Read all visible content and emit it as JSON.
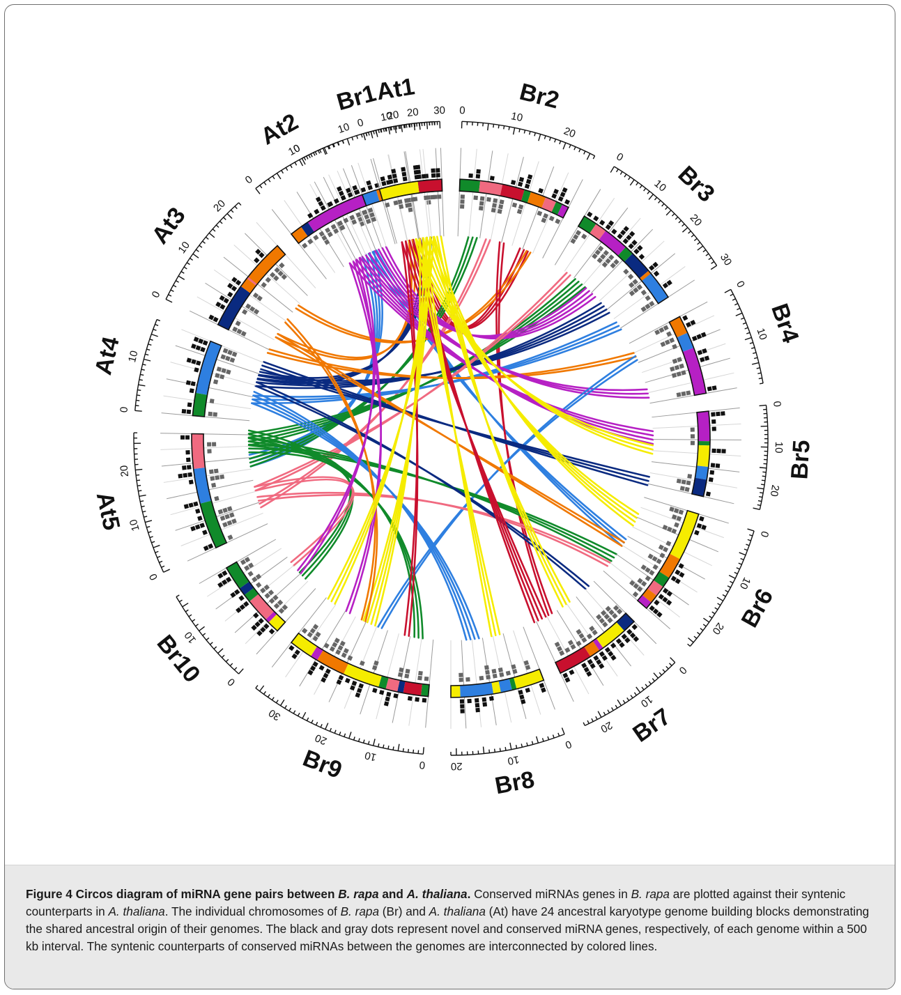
{
  "figure": {
    "caption_title": "Figure 4 Circos diagram of miRNA gene pairs between ",
    "caption_title_sp1": "B. rapa",
    "caption_title_and": " and ",
    "caption_title_sp2": "A. thaliana",
    "caption_title_end": ".",
    "caption_p1": " Conserved miRNAs genes in ",
    "caption_p1_sp": "B. rapa",
    "caption_p2": " are plotted against their syntenic counterparts in ",
    "caption_p2_sp": "A. thaliana",
    "caption_p3": ". The individual chromosomes of ",
    "caption_p3_sp1": "B. rapa",
    "caption_p4": " (Br) and ",
    "caption_p4_sp": "A. thaliana",
    "caption_p5": " (At) have 24 ancestral karyotype genome building blocks demonstrating the shared ancestral origin of their genomes. The black and gray dots represent novel and conserved miRNA genes, respectively, of each genome within a 500 kb interval. The syntenic counterparts of conserved miRNAs between the genomes are interconnected by colored lines."
  },
  "colors": {
    "yellow": "#f5ec00",
    "red": "#c8102e",
    "orange": "#f07800",
    "purple": "#b620c4",
    "light_blue": "#2e7fe0",
    "dark_blue": "#0a2a80",
    "green": "#108a2a",
    "pink": "#f06a80",
    "novel_dot": "#111111",
    "conserved_dot": "#666666"
  },
  "chromosomes": [
    {
      "name": "Br1",
      "ticks": [
        "0",
        "10",
        "20"
      ],
      "size": 28,
      "blocks": [
        [
          "light_blue",
          0.45
        ],
        [
          "orange",
          0.08
        ],
        [
          "red",
          0.1
        ],
        [
          "pink",
          0.04
        ],
        [
          "dark_blue",
          0.33
        ]
      ]
    },
    {
      "name": "Br2",
      "ticks": [
        "0",
        "10",
        "20"
      ],
      "size": 26,
      "blocks": [
        [
          "green",
          0.18
        ],
        [
          "pink",
          0.2
        ],
        [
          "red",
          0.2
        ],
        [
          "green",
          0.06
        ],
        [
          "orange",
          0.14
        ],
        [
          "pink",
          0.1
        ],
        [
          "green",
          0.06
        ],
        [
          "purple",
          0.06
        ]
      ]
    },
    {
      "name": "Br3",
      "ticks": [
        "0",
        "10",
        "20",
        "30"
      ],
      "size": 30,
      "blocks": [
        [
          "green",
          0.12
        ],
        [
          "pink",
          0.1
        ],
        [
          "purple",
          0.22
        ],
        [
          "green",
          0.08
        ],
        [
          "dark_blue",
          0.2
        ],
        [
          "orange",
          0.03
        ],
        [
          "light_blue",
          0.25
        ]
      ]
    },
    {
      "name": "Br4",
      "ticks": [
        "0",
        "10"
      ],
      "size": 19,
      "blocks": [
        [
          "orange",
          0.22
        ],
        [
          "light_blue",
          0.2
        ],
        [
          "purple",
          0.58
        ]
      ]
    },
    {
      "name": "Br5",
      "ticks": [
        "0",
        "10",
        "20"
      ],
      "size": 25,
      "blocks": [
        [
          "purple",
          0.35
        ],
        [
          "green",
          0.05
        ],
        [
          "yellow",
          0.25
        ],
        [
          "light_blue",
          0.15
        ],
        [
          "dark_blue",
          0.2
        ]
      ]
    },
    {
      "name": "Br6",
      "ticks": [
        "0",
        "10",
        "20"
      ],
      "size": 26,
      "blocks": [
        [
          "yellow",
          0.45
        ],
        [
          "orange",
          0.2
        ],
        [
          "green",
          0.1
        ],
        [
          "pink",
          0.1
        ],
        [
          "orange",
          0.08
        ],
        [
          "purple",
          0.07
        ]
      ]
    },
    {
      "name": "Br7",
      "ticks": [
        "0",
        "10",
        "20"
      ],
      "size": 24,
      "blocks": [
        [
          "dark_blue",
          0.15
        ],
        [
          "yellow",
          0.3
        ],
        [
          "purple",
          0.05
        ],
        [
          "orange",
          0.12
        ],
        [
          "red",
          0.38
        ]
      ]
    },
    {
      "name": "Br8",
      "ticks": [
        "0",
        "10",
        "20"
      ],
      "size": 21,
      "blocks": [
        [
          "yellow",
          0.3
        ],
        [
          "green",
          0.05
        ],
        [
          "light_blue",
          0.12
        ],
        [
          "yellow",
          0.08
        ],
        [
          "light_blue",
          0.35
        ],
        [
          "yellow",
          0.1
        ]
      ]
    },
    {
      "name": "Br9",
      "ticks": [
        "0",
        "10",
        "20",
        "30"
      ],
      "size": 36,
      "blocks": [
        [
          "green",
          0.05
        ],
        [
          "red",
          0.12
        ],
        [
          "dark_blue",
          0.04
        ],
        [
          "pink",
          0.08
        ],
        [
          "green",
          0.05
        ],
        [
          "yellow",
          0.25
        ],
        [
          "orange",
          0.2
        ],
        [
          "purple",
          0.05
        ],
        [
          "yellow",
          0.16
        ]
      ]
    },
    {
      "name": "Br10",
      "ticks": [
        "0",
        "10"
      ],
      "size": 17,
      "blocks": [
        [
          "yellow",
          0.15
        ],
        [
          "purple",
          0.05
        ],
        [
          "pink",
          0.3
        ],
        [
          "green",
          0.1
        ],
        [
          "dark_blue",
          0.1
        ],
        [
          "green",
          0.3
        ]
      ]
    },
    {
      "name": "At5",
      "ticks": [
        "0",
        "10",
        "20"
      ],
      "size": 27,
      "blocks": [
        [
          "green",
          0.4
        ],
        [
          "light_blue",
          0.3
        ],
        [
          "pink",
          0.3
        ]
      ]
    },
    {
      "name": "At4",
      "ticks": [
        "0",
        "10"
      ],
      "size": 18,
      "blocks": [
        [
          "green",
          0.3
        ],
        [
          "light_blue",
          0.7
        ]
      ]
    },
    {
      "name": "At3",
      "ticks": [
        "0",
        "10",
        "20"
      ],
      "size": 23,
      "blocks": [
        [
          "dark_blue",
          0.45
        ],
        [
          "orange",
          0.1
        ],
        [
          "pink",
          0.02
        ],
        [
          "orange",
          0.43
        ]
      ]
    },
    {
      "name": "At2",
      "ticks": [
        "0",
        "10"
      ],
      "size": 19,
      "blocks": [
        [
          "orange",
          0.15
        ],
        [
          "dark_blue",
          0.1
        ],
        [
          "purple",
          0.55
        ],
        [
          "purple",
          0.2
        ]
      ]
    },
    {
      "name": "At1",
      "ticks": [
        "0",
        "10",
        "20",
        "30"
      ],
      "size": 30,
      "blocks": [
        [
          "yellow",
          0.62
        ],
        [
          "red",
          0.38
        ]
      ]
    }
  ]
}
